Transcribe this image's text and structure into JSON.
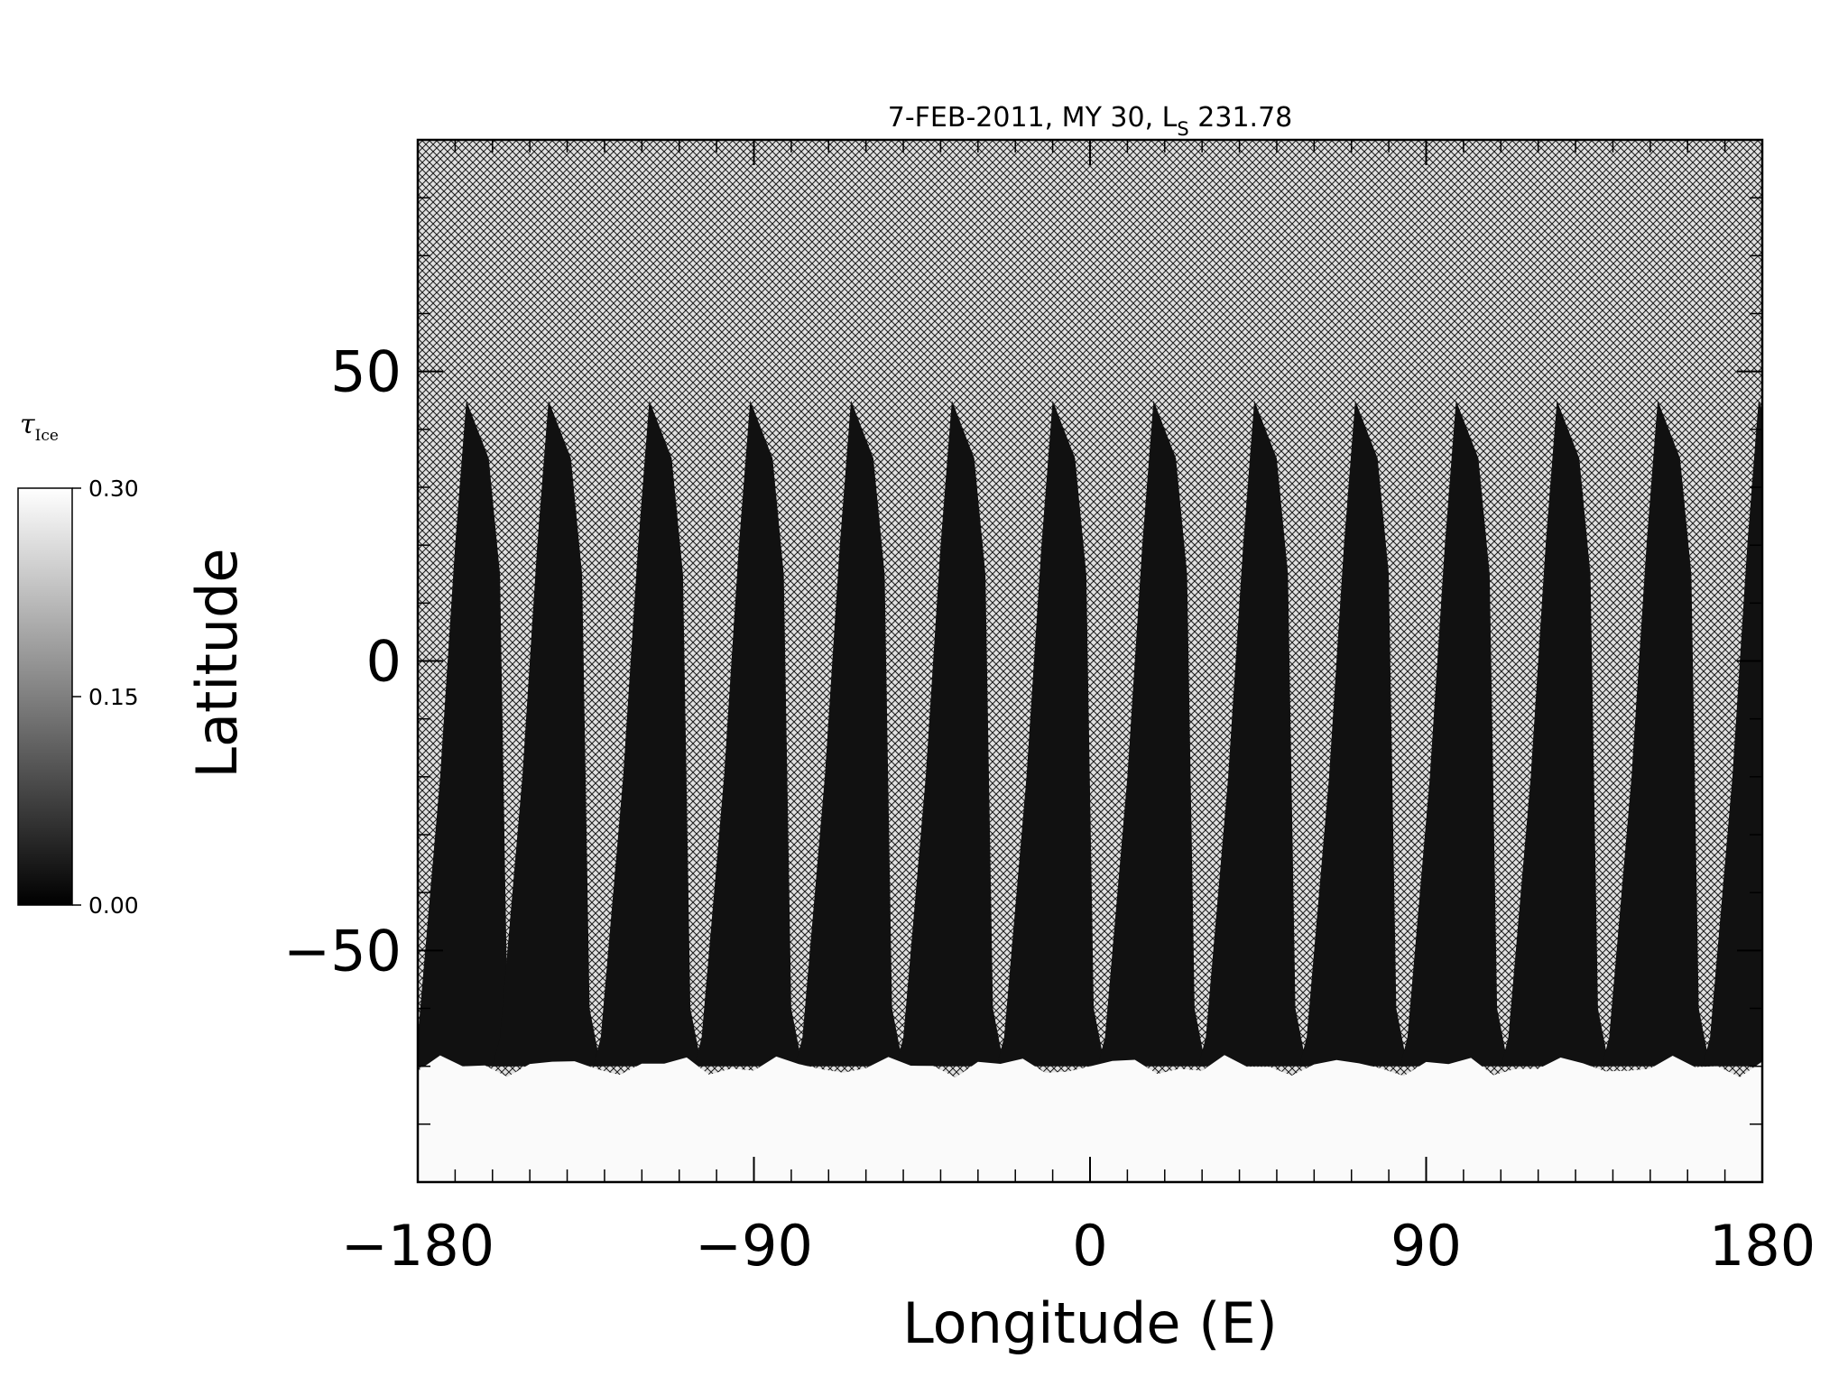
{
  "chart_data": {
    "type": "heatmap",
    "title_main": "7-FEB-2011, MY 30,  L",
    "title_subscript": "S",
    "title_suffix": " 231.78",
    "xlabel": "Longitude (E)",
    "ylabel": "Latitude",
    "xlim": [
      -180,
      180
    ],
    "ylim": [
      -90,
      90
    ],
    "x_ticks": [
      -180,
      -90,
      0,
      90,
      180
    ],
    "x_tick_labels": [
      "−180",
      "−90",
      "0",
      "90",
      "180"
    ],
    "y_ticks": [
      -50,
      0,
      50
    ],
    "y_tick_labels": [
      "−50",
      "0",
      "50"
    ],
    "grid": false,
    "colorbar": {
      "title": "τ",
      "title_subscript": "Ice",
      "min": 0.0,
      "max": 0.3,
      "tick_values": [
        0.0,
        0.15,
        0.3
      ],
      "tick_labels": [
        "0.00",
        "0.15",
        "0.30"
      ],
      "colors": [
        "#000000",
        "#ffffff"
      ],
      "placement": "left"
    },
    "missing_data_pattern": "crosshatch",
    "swath_count": 14,
    "swath_left_edge_lat_minus65": [
      -180,
      -158,
      -131,
      -104,
      -77,
      -50,
      -23,
      4,
      31,
      58,
      85,
      112,
      139,
      166
    ],
    "swath_top_latitude": 45,
    "swath_bottom_latitude": -70,
    "polar_cloud_boundary_latitude": -70,
    "polar_cloud_value": 0.3,
    "swath_typical_value": 0.02
  }
}
